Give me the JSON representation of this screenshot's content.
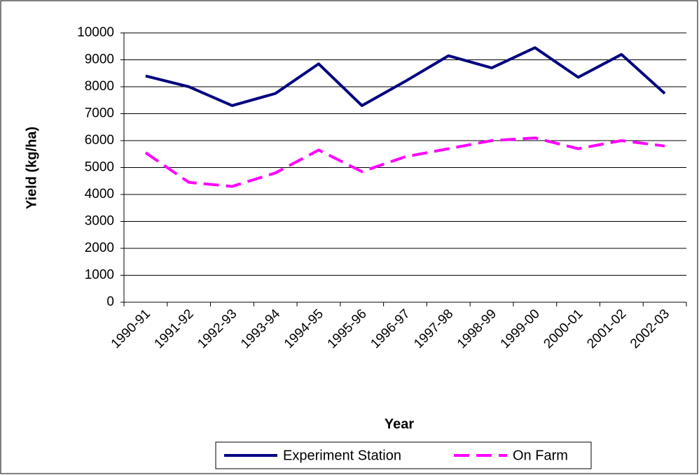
{
  "chart_data": {
    "type": "line",
    "x_label": "Year",
    "y_label": "Yield (kg/ha)",
    "categories": [
      "1990-91",
      "1991-92",
      "1992-93",
      "1993-94",
      "1994-95",
      "1995-96",
      "1996-97",
      "1997-98",
      "1998-99",
      "1999-00",
      "2000-01",
      "2001-02",
      "2002-03"
    ],
    "series": [
      {
        "name": "Experiment Station",
        "color": "#000080",
        "dashed": false,
        "values": [
          8400,
          8000,
          7300,
          7750,
          8850,
          7300,
          8200,
          9150,
          8700,
          9450,
          8350,
          9200,
          7750
        ]
      },
      {
        "name": "On Farm",
        "color": "#ff00ff",
        "dashed": true,
        "values": [
          5550,
          4450,
          4300,
          4800,
          5650,
          4850,
          5400,
          5700,
          6000,
          6100,
          5700,
          6000,
          5800
        ]
      }
    ],
    "ylim": [
      0,
      10000
    ],
    "yticks": [
      0,
      1000,
      2000,
      3000,
      4000,
      5000,
      6000,
      7000,
      8000,
      9000,
      10000
    ],
    "grid": true,
    "legend": "bottom"
  }
}
